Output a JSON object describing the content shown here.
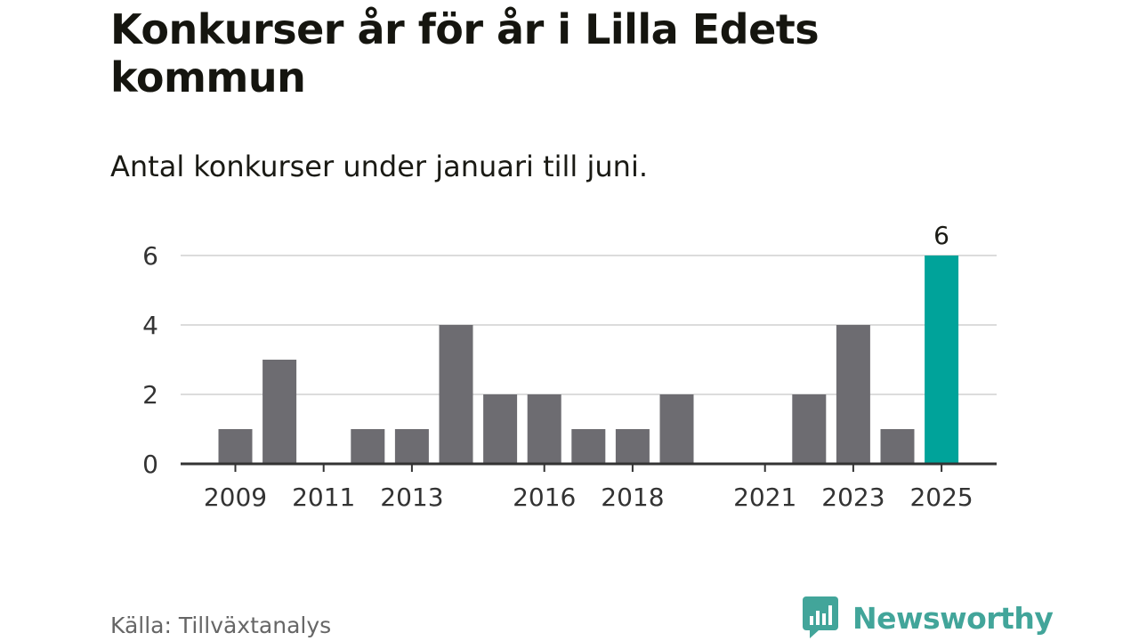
{
  "header": {
    "title": "Konkurser år för år i Lilla Edets kommun",
    "subtitle": "Antal konkurser under januari till juni."
  },
  "footer": {
    "source": "Källa: Tillväxtanalys",
    "brand": "Newsworthy",
    "brand_icon": "newsworthy-logo-icon"
  },
  "colors": {
    "bar": "#6d6c71",
    "highlight": "#00a39a",
    "grid": "#dcdcdc",
    "axis": "#333333",
    "brand": "#42a59a"
  },
  "chart_data": {
    "type": "bar",
    "categories": [
      "2009",
      "2010",
      "2011",
      "2012",
      "2013",
      "2014",
      "2015",
      "2016",
      "2017",
      "2018",
      "2019",
      "2020",
      "2021",
      "2022",
      "2023",
      "2024",
      "2025"
    ],
    "values": [
      1,
      3,
      0,
      1,
      1,
      4,
      2,
      2,
      1,
      1,
      2,
      0,
      0,
      2,
      4,
      1,
      6
    ],
    "highlight_index": 16,
    "data_labels": [
      {
        "index": 16,
        "text": "6"
      }
    ],
    "x_tick_labels": [
      "2009",
      "2011",
      "2013",
      "2016",
      "2018",
      "2021",
      "2023",
      "2025"
    ],
    "y_ticks": [
      0,
      2,
      4,
      6
    ],
    "ylim": [
      0,
      6
    ],
    "grid": true,
    "title": "Konkurser år för år i Lilla Edets kommun",
    "subtitle": "Antal konkurser under januari till juni.",
    "xlabel": "",
    "ylabel": ""
  }
}
